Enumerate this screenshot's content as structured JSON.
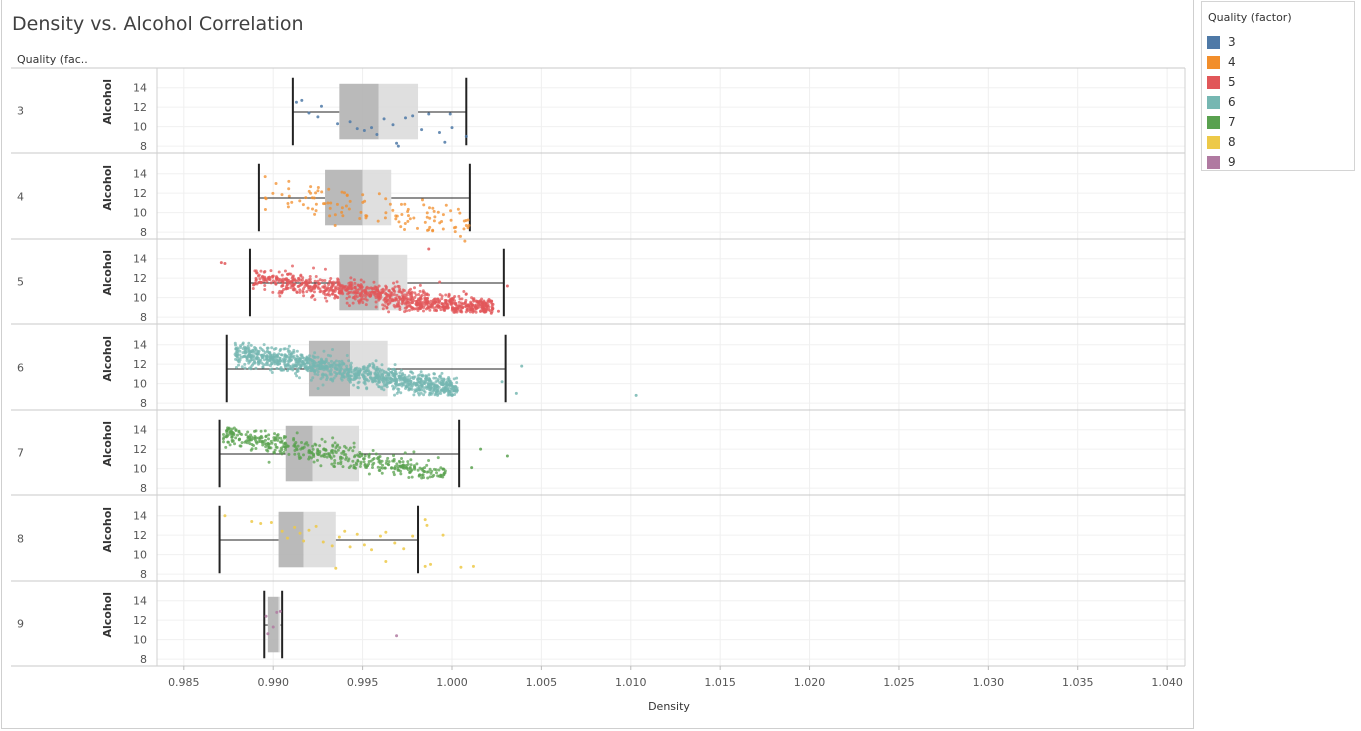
{
  "chart_data": {
    "type": "scatter",
    "subtype": "box-plot-with-jitter",
    "title": "Density vs. Alcohol Correlation",
    "row_header": "Quality (fac..",
    "xlabel": "Density",
    "ylabel": "Alcohol",
    "xlim": [
      0.9835,
      1.041
    ],
    "x_ticks": [
      "0.985",
      "0.990",
      "0.995",
      "1.000",
      "1.005",
      "1.010",
      "1.015",
      "1.020",
      "1.025",
      "1.030",
      "1.035",
      "1.040"
    ],
    "ylim": [
      7.5,
      15.2
    ],
    "y_ticks": [
      "14",
      "12",
      "10",
      "8"
    ],
    "grid": true,
    "legend": {
      "title": "Quality (factor)",
      "placement": "right",
      "items": [
        {
          "label": "3",
          "color": "#4e79a7"
        },
        {
          "label": "4",
          "color": "#f28e2b"
        },
        {
          "label": "5",
          "color": "#e15759"
        },
        {
          "label": "6",
          "color": "#76b7b2"
        },
        {
          "label": "7",
          "color": "#59a14f"
        },
        {
          "label": "8",
          "color": "#edc948"
        },
        {
          "label": "9",
          "color": "#b07aa1"
        }
      ]
    },
    "series": [
      {
        "name": "3",
        "color": "#4e79a7",
        "box": {
          "whisker_low": 0.9911,
          "q1": 0.9937,
          "median": 0.9959,
          "q3": 0.9981,
          "whisker_high": 1.0008
        },
        "points": [
          [
            0.9913,
            12.5
          ],
          [
            0.9916,
            12.7
          ],
          [
            0.992,
            11.4
          ],
          [
            0.9925,
            11.0
          ],
          [
            0.9927,
            12.1
          ],
          [
            0.9936,
            10.3
          ],
          [
            0.9943,
            10.5
          ],
          [
            0.9947,
            9.8
          ],
          [
            0.9951,
            9.6
          ],
          [
            0.9955,
            9.9
          ],
          [
            0.9958,
            9.2
          ],
          [
            0.9962,
            10.8
          ],
          [
            0.9967,
            10.2
          ],
          [
            0.9969,
            8.3
          ],
          [
            0.997,
            8.0
          ],
          [
            0.9974,
            10.9
          ],
          [
            0.9978,
            11.1
          ],
          [
            0.9983,
            9.7
          ],
          [
            0.9987,
            11.3
          ],
          [
            0.9993,
            9.4
          ],
          [
            0.9996,
            8.4
          ],
          [
            0.9999,
            11.3
          ],
          [
            1.0,
            9.9
          ],
          [
            1.0008,
            9.0
          ]
        ]
      },
      {
        "name": "4",
        "color": "#f28e2b",
        "box": {
          "whisker_low": 0.9892,
          "q1": 0.9929,
          "median": 0.995,
          "q3": 0.9966,
          "whisker_high": 1.001
        },
        "points": []
      },
      {
        "name": "5",
        "color": "#e15759",
        "box": {
          "whisker_low": 0.9887,
          "q1": 0.9937,
          "median": 0.9959,
          "q3": 0.9975,
          "whisker_high": 1.0029
        },
        "points": [
          [
            0.9871,
            13.6
          ],
          [
            0.9873,
            13.5
          ],
          [
            0.9987,
            15.0
          ],
          [
            1.0031,
            11.2
          ],
          [
            1.0026,
            8.6
          ],
          [
            1.0022,
            8.4
          ]
        ]
      },
      {
        "name": "6",
        "color": "#76b7b2",
        "box": {
          "whisker_low": 0.9874,
          "q1": 0.992,
          "median": 0.9943,
          "q3": 0.9964,
          "whisker_high": 1.003
        },
        "points": [
          [
            1.0103,
            8.8
          ],
          [
            1.0039,
            11.8
          ],
          [
            1.0036,
            9.0
          ],
          [
            1.0028,
            10.2
          ]
        ]
      },
      {
        "name": "7",
        "color": "#59a14f",
        "box": {
          "whisker_low": 0.987,
          "q1": 0.9907,
          "median": 0.9922,
          "q3": 0.9948,
          "whisker_high": 1.0004
        },
        "points": [
          [
            1.0016,
            12.0
          ],
          [
            1.0031,
            11.3
          ],
          [
            1.0011,
            10.1
          ]
        ]
      },
      {
        "name": "8",
        "color": "#edc948",
        "box": {
          "whisker_low": 0.987,
          "q1": 0.9903,
          "median": 0.9917,
          "q3": 0.9935,
          "whisker_high": 0.9981
        },
        "points": [
          [
            0.9873,
            14.0
          ],
          [
            0.9888,
            13.4
          ],
          [
            0.9893,
            13.2
          ],
          [
            0.9899,
            13.3
          ],
          [
            0.9905,
            12.4
          ],
          [
            0.9908,
            11.7
          ],
          [
            0.9912,
            12.8
          ],
          [
            0.9915,
            12.2
          ],
          [
            0.9917,
            11.4
          ],
          [
            0.992,
            12.5
          ],
          [
            0.9924,
            12.9
          ],
          [
            0.9928,
            11.3
          ],
          [
            0.9933,
            10.9
          ],
          [
            0.9937,
            11.8
          ],
          [
            0.994,
            12.4
          ],
          [
            0.9943,
            10.8
          ],
          [
            0.9947,
            12.1
          ],
          [
            0.9951,
            11.0
          ],
          [
            0.9955,
            10.5
          ],
          [
            0.996,
            11.9
          ],
          [
            0.9963,
            12.3
          ],
          [
            0.9968,
            11.2
          ],
          [
            0.9973,
            10.6
          ],
          [
            0.9978,
            11.9
          ],
          [
            0.9986,
            13.0
          ],
          [
            0.9988,
            9.0
          ],
          [
            0.9995,
            12.0
          ],
          [
            1.0005,
            8.7
          ],
          [
            1.0012,
            8.8
          ],
          [
            0.9985,
            13.6
          ],
          [
            0.9963,
            9.3
          ],
          [
            0.9935,
            8.6
          ],
          [
            0.9985,
            8.8
          ]
        ]
      },
      {
        "name": "9",
        "color": "#b07aa1",
        "box": {
          "whisker_low": 0.9895,
          "q1": 0.9897,
          "median": 0.9903,
          "q3": 0.9904,
          "whisker_high": 0.9905
        },
        "points": [
          [
            0.9896,
            12.4
          ],
          [
            0.99,
            11.3
          ],
          [
            0.9902,
            12.8
          ],
          [
            0.9904,
            12.9
          ],
          [
            0.9897,
            10.6
          ],
          [
            0.9969,
            10.4
          ]
        ]
      }
    ]
  },
  "legend": {
    "title": "Quality (factor)"
  }
}
